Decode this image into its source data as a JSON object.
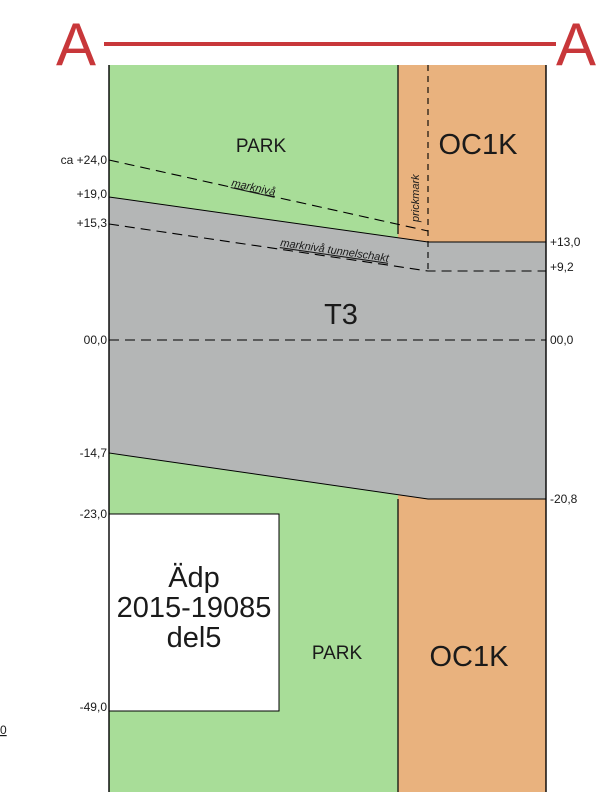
{
  "section": {
    "marker_left": "A",
    "marker_right": "A",
    "line_color": "#c8373a"
  },
  "zones": {
    "park_upper": "PARK",
    "park_lower": "PARK",
    "oc1k_upper": "OC1K",
    "oc1k_lower": "OC1K",
    "t3": "T3",
    "adp_line1": "Ädp",
    "adp_line2": "2015-19085",
    "adp_line3": "del5"
  },
  "colors": {
    "park": "#a8dd98",
    "oc1k": "#e9b27e",
    "t3": "#b4b6b6",
    "adp_box": "#ffffff"
  },
  "left_levels": {
    "ca24": "ca +24,0",
    "p19": "+19,0",
    "p15": "+15,3",
    "zero": "00,0",
    "m147": "-14,7",
    "m23": "-23,0",
    "m49": "-49,0"
  },
  "right_levels": {
    "p13": "+13,0",
    "p92": "+9,2",
    "zero": "00,0",
    "m208": "-20,8"
  },
  "annotations": {
    "marknivå": "marknivå",
    "marknivå_tunnelschakt": "marknivå tunnelschakt",
    "prickmark": "prickmark",
    "edge_fragment": "0"
  }
}
